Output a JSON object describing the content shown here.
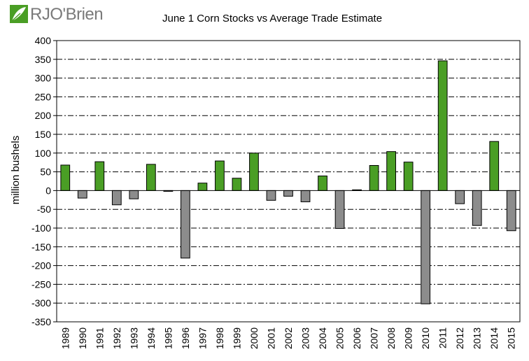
{
  "logo": {
    "text": "RJO'Brien",
    "icon": "rjo-leaf-logo-icon"
  },
  "colors": {
    "positive": "#4a9e25",
    "negative": "#8c8c8c",
    "grid": "#000000"
  },
  "chart_data": {
    "type": "bar",
    "title": "June 1 Corn Stocks vs Average Trade Estimate",
    "ylabel": "million bushels",
    "xlabel": "",
    "ylim": [
      -350,
      400
    ],
    "ytick_step": 50,
    "grid": "horizontal dash-dot",
    "legend": "none",
    "categories": [
      "1989",
      "1990",
      "1991",
      "1992",
      "1993",
      "1994",
      "1995",
      "1996",
      "1997",
      "1998",
      "1999",
      "2000",
      "2001",
      "2002",
      "2003",
      "2004",
      "2005",
      "2006",
      "2007",
      "2008",
      "2009",
      "2010",
      "2011",
      "2012",
      "2013",
      "2014",
      "2015"
    ],
    "values": [
      68,
      -20,
      77,
      -38,
      -22,
      70,
      -2,
      -180,
      20,
      79,
      33,
      100,
      -26,
      -15,
      -30,
      39,
      -101,
      2,
      67,
      104,
      76,
      -302,
      346,
      -35,
      -93,
      131,
      -107
    ]
  }
}
